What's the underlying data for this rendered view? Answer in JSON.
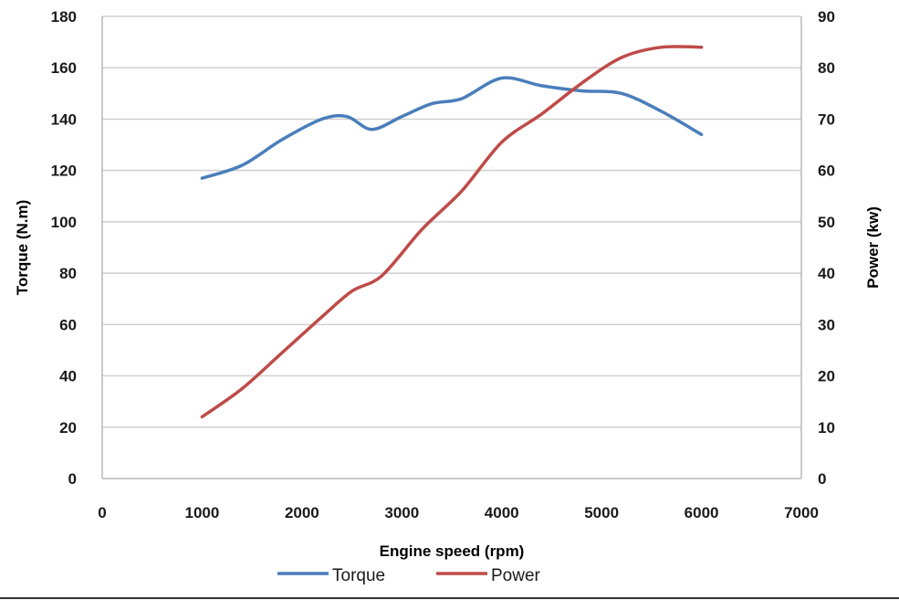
{
  "chart_data": {
    "type": "line",
    "title": "",
    "xlabel": "Engine speed (rpm)",
    "ylabel": "Torque (N.m)",
    "y2label": "Power (kw)",
    "xlim": [
      0,
      7000
    ],
    "ylim": [
      0,
      180
    ],
    "y2lim": [
      0,
      90
    ],
    "x_ticks": [
      0,
      1000,
      2000,
      3000,
      4000,
      5000,
      6000,
      7000
    ],
    "y_ticks": [
      0,
      20,
      40,
      60,
      80,
      100,
      120,
      140,
      160,
      180
    ],
    "y2_ticks": [
      0,
      10,
      20,
      30,
      40,
      50,
      60,
      70,
      80,
      90
    ],
    "grid": true,
    "legend_position": "bottom",
    "series": [
      {
        "name": "Torque",
        "axis": "left",
        "color": "#4a7ebb",
        "x": [
          1000,
          1400,
          1800,
          2200,
          2450,
          2700,
          3000,
          3300,
          3600,
          4000,
          4400,
          4800,
          5200,
          5600,
          6000
        ],
        "values": [
          117,
          122,
          132,
          140,
          141,
          136,
          141,
          146,
          148,
          156,
          153,
          151,
          150,
          143,
          134
        ]
      },
      {
        "name": "Power",
        "axis": "right",
        "color": "#be4b48",
        "x": [
          1000,
          1400,
          1800,
          2200,
          2500,
          2800,
          3200,
          3600,
          4000,
          4400,
          4800,
          5200,
          5600,
          6000
        ],
        "values": [
          12,
          17.5,
          24.5,
          31.5,
          36.5,
          39.5,
          48.5,
          56,
          65.5,
          71,
          77,
          82,
          84,
          84
        ]
      }
    ]
  }
}
